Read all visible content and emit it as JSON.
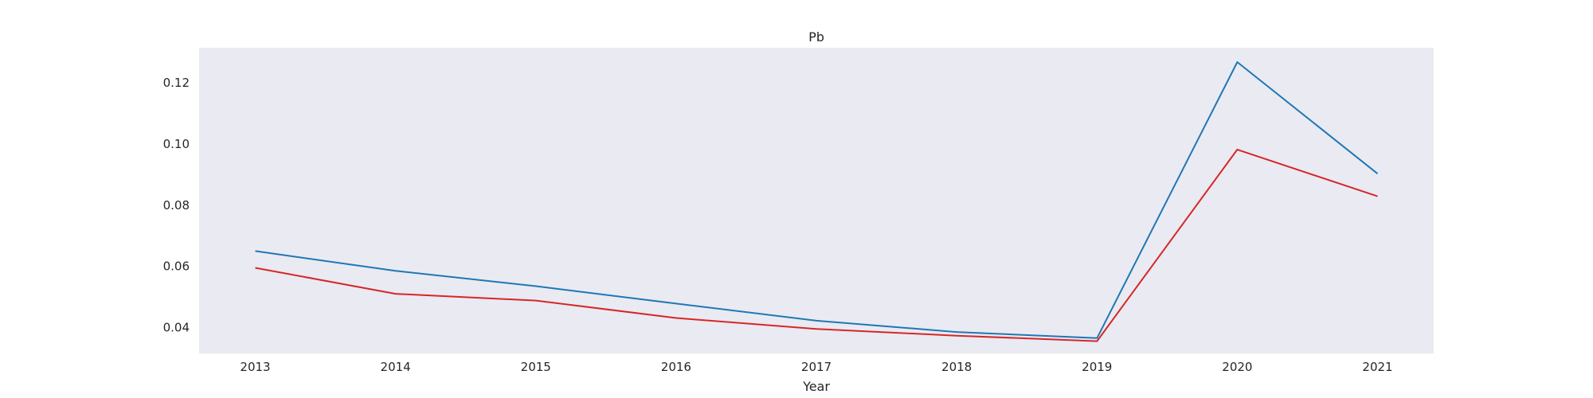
{
  "chart_data": {
    "type": "line",
    "title": "Pb",
    "xlabel": "Year",
    "ylabel": "",
    "x": [
      2013,
      2014,
      2015,
      2016,
      2017,
      2018,
      2019,
      2020,
      2021
    ],
    "xticks": [
      "2013",
      "2014",
      "2015",
      "2016",
      "2017",
      "2018",
      "2019",
      "2020",
      "2021"
    ],
    "yticks": [
      "0.04",
      "0.06",
      "0.08",
      "0.10",
      "0.12"
    ],
    "ylim": [
      0.0315,
      0.1315
    ],
    "grid": false,
    "legend": "none",
    "background_color": "#eaeaf2",
    "series": [
      {
        "color": "#1f77b4",
        "values": [
          0.065,
          0.0585,
          0.0535,
          0.0478,
          0.0422,
          0.0385,
          0.0365,
          0.1268,
          0.0903
        ]
      },
      {
        "color": "#d62728",
        "values": [
          0.0595,
          0.051,
          0.0488,
          0.0431,
          0.0395,
          0.0373,
          0.0355,
          0.0982,
          0.0829
        ]
      }
    ]
  }
}
